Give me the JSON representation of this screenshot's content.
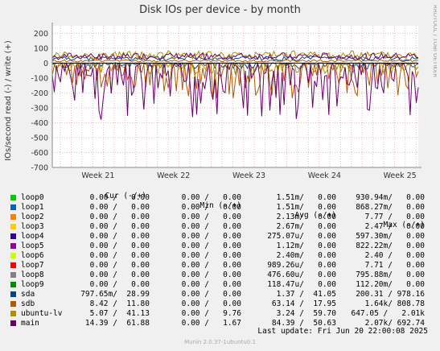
{
  "title": "Disk IOs per device - by month",
  "side_text": "RRDTOOL / TOBI OETIKER",
  "footer": "Munin 2.0.37-1ubuntu0.1",
  "last_update": "Last update: Fri Jun 20 22:00:08 2025",
  "legend_header": {
    "cur": "Cur (-/+)",
    "min": "Min (-/+)",
    "avg": "Avg (-/+)",
    "max": "Max (-/+)"
  },
  "chart_data": {
    "type": "line",
    "title": "Disk IOs per device - by month",
    "ylabel": "IOs/second read (-) / write (+)",
    "ylim": [
      -700,
      250
    ],
    "yticks": [
      200,
      100,
      0,
      -100,
      -200,
      -300,
      -400,
      -500,
      -600,
      -700
    ],
    "ytick_labels": [
      "200",
      "100",
      "0",
      "-100",
      "-200",
      "-300",
      "-400",
      "-500",
      "-600",
      "-700"
    ],
    "x_labels": [
      "Week 21",
      "Week 22",
      "Week 23",
      "Week 24",
      "Week 25"
    ],
    "grid": true,
    "series": [
      {
        "name": "loop0",
        "color": "#00cc00",
        "cur": "0.00 /   0.00",
        "min": "0.00 /   0.00",
        "avg": "1.51m/   0.00",
        "max": "930.94m/   0.00",
        "read_level": 0,
        "write_level": 0
      },
      {
        "name": "loop1",
        "color": "#0066b3",
        "cur": "0.00 /   0.00",
        "min": "0.00 /   0.00",
        "avg": "1.51m/   0.00",
        "max": "868.27m/   0.00",
        "read_level": 0,
        "write_level": 0
      },
      {
        "name": "loop2",
        "color": "#ff8000",
        "cur": "0.00 /   0.00",
        "min": "0.00 /   0.00",
        "avg": "2.13m/   0.00",
        "max": "7.77 /   0.00",
        "read_level": 0,
        "write_level": 0
      },
      {
        "name": "loop3",
        "color": "#ffcc00",
        "cur": "0.00 /   0.00",
        "min": "0.00 /   0.00",
        "avg": "2.67m/   0.00",
        "max": "2.47 /   0.00",
        "read_level": 0,
        "write_level": 0
      },
      {
        "name": "loop4",
        "color": "#330099",
        "cur": "0.00 /   0.00",
        "min": "0.00 /   0.00",
        "avg": "275.07u/   0.00",
        "max": "597.30m/   0.00",
        "read_level": 0,
        "write_level": 0
      },
      {
        "name": "loop5",
        "color": "#990099",
        "cur": "0.00 /   0.00",
        "min": "0.00 /   0.00",
        "avg": "1.12m/   0.00",
        "max": "822.22m/   0.00",
        "read_level": 0,
        "write_level": 0
      },
      {
        "name": "loop6",
        "color": "#ccff00",
        "cur": "0.00 /   0.00",
        "min": "0.00 /   0.00",
        "avg": "2.40m/   0.00",
        "max": "2.40 /   0.00",
        "read_level": 0,
        "write_level": 0
      },
      {
        "name": "loop7",
        "color": "#ff0000",
        "cur": "0.00 /   0.00",
        "min": "0.00 /   0.00",
        "avg": "989.26u/   0.00",
        "max": "7.71 /   0.00",
        "read_level": 0,
        "write_level": 0
      },
      {
        "name": "loop8",
        "color": "#808080",
        "cur": "0.00 /   0.00",
        "min": "0.00 /   0.00",
        "avg": "476.60u/   0.00",
        "max": "795.88m/   0.00",
        "read_level": 0,
        "write_level": 0
      },
      {
        "name": "loop9",
        "color": "#008f00",
        "cur": "0.00 /   0.00",
        "min": "0.00 /   0.00",
        "avg": "118.47u/   0.00",
        "max": "112.20m/   0.00",
        "read_level": 0,
        "write_level": 0
      },
      {
        "name": "sda",
        "color": "#00487d",
        "cur": "797.65m/  28.99",
        "min": "0.00 /   0.00",
        "avg": "1.37 /  41.05",
        "max": "200.31 / 978.16",
        "read_level": 10,
        "write_level": 30
      },
      {
        "name": "sdb",
        "color": "#b35a00",
        "cur": "8.42 /  11.80",
        "min": "0.00 /   0.00",
        "avg": "63.14 /  17.95",
        "max": "1.64k/ 808.78",
        "read_level": 60,
        "write_level": 15
      },
      {
        "name": "ubuntu-lv",
        "color": "#b38f00",
        "cur": "5.07 /  41.13",
        "min": "0.00 /   9.76",
        "avg": "3.24 /  59.70",
        "max": "647.05 /   2.01k",
        "read_level": 20,
        "write_level": 55
      },
      {
        "name": "main",
        "color": "#6b006b",
        "cur": "14.39 /  61.88",
        "min": "0.00 /   1.67",
        "avg": "84.39 /  50.63",
        "max": "2.07k/ 692.74",
        "read_level": 100,
        "write_level": 45
      }
    ]
  }
}
